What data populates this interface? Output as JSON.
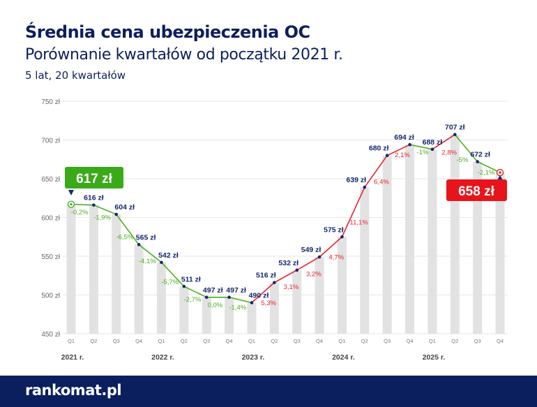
{
  "header": {
    "title": "Średnia cena ubezpieczenia OC",
    "subtitle": "Porównanie kwartałów od początku 2021 r.",
    "note": "5 lat, 20 kwartałów"
  },
  "footer": {
    "logo": "rankomat.pl"
  },
  "chart_data": {
    "type": "line",
    "title": "Średnia cena ubezpieczenia OC",
    "ylim": [
      450,
      750
    ],
    "yticks": [
      450,
      500,
      550,
      600,
      650,
      700,
      750
    ],
    "ytick_labels": [
      "450 zł",
      "500 zł",
      "550 zł",
      "600 zł",
      "650 zł",
      "700 zł",
      "750 zł"
    ],
    "grid": true,
    "categories": [
      "Q1",
      "Q2",
      "Q3",
      "Q4",
      "Q1",
      "Q2",
      "Q3",
      "Q4",
      "Q1",
      "Q2",
      "Q3",
      "Q4",
      "Q1",
      "Q2",
      "Q3",
      "Q4",
      "Q1",
      "Q2",
      "Q3",
      "Q4"
    ],
    "years": [
      "2021 r.",
      "2022 r.",
      "2023 r.",
      "2024 r.",
      "2025 r."
    ],
    "values": [
      617,
      616,
      604,
      565,
      542,
      511,
      497,
      497,
      490,
      516,
      532,
      549,
      575,
      639,
      680,
      694,
      688,
      707,
      672,
      658
    ],
    "value_labels": [
      "617 zł",
      "616 zł",
      "604 zł",
      "565 zł",
      "542 zł",
      "511 zł",
      "497 zł",
      "497 zł",
      "490 zł",
      "516 zł",
      "532 zł",
      "549 zł",
      "575 zł",
      "639 zł",
      "680 zł",
      "694 zł",
      "688 zł",
      "707 zł",
      "672 zł",
      "658 zł"
    ],
    "changes": [
      "-0,2%",
      "-1,9%",
      "-6,5%",
      "-4,1%",
      "-5,7%",
      "-2,7%",
      "0,0%",
      "-1,4%",
      "5,3%",
      "3,1%",
      "3,2%",
      "4,7%",
      "11,1%",
      "6,4%",
      "2,1%",
      "-1%",
      "2,8%",
      "-5%",
      "-2,1%"
    ],
    "start_callout": "617 zł",
    "end_callout": "658 zł",
    "colors": {
      "increase": "#e8232a",
      "decrease": "#4cae1c",
      "bars": "#e2e2e2",
      "labels": "#13286e",
      "start": "#3aaa1a",
      "end": "#e8141b"
    }
  }
}
